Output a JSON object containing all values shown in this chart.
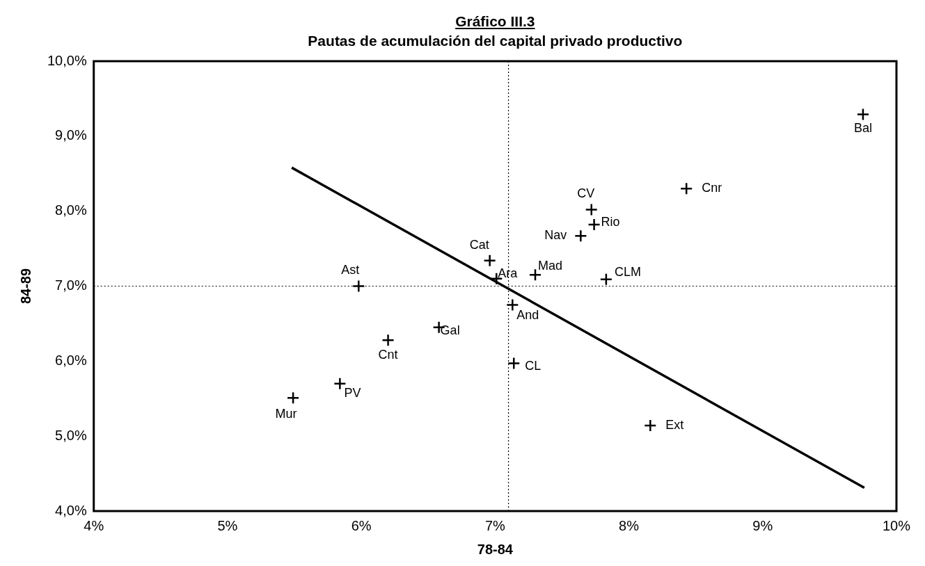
{
  "chart_data": {
    "type": "scatter",
    "title": "Gráfico III.3",
    "subtitle": "Pautas de acumulación del capital privado productivo",
    "xlabel": "78-84",
    "ylabel": "84-89",
    "xlim": [
      4,
      10
    ],
    "ylim": [
      4,
      10
    ],
    "xticks": [
      {
        "value": 4,
        "label": "4%"
      },
      {
        "value": 5,
        "label": "5%"
      },
      {
        "value": 6,
        "label": "6%"
      },
      {
        "value": 7,
        "label": "7%"
      },
      {
        "value": 8,
        "label": "8%"
      },
      {
        "value": 9,
        "label": "9%"
      },
      {
        "value": 10,
        "label": "10%"
      }
    ],
    "yticks": [
      {
        "value": 4,
        "label": "4,0%"
      },
      {
        "value": 5,
        "label": "5,0%"
      },
      {
        "value": 6,
        "label": "6,0%"
      },
      {
        "value": 7,
        "label": "7,0%"
      },
      {
        "value": 8,
        "label": "8,0%"
      },
      {
        "value": 9,
        "label": "9,0%"
      },
      {
        "value": 10,
        "label": "10,0%"
      }
    ],
    "grid": false,
    "legend": false,
    "series": [
      {
        "type": "scatter",
        "color": "#000000",
        "marker": "cross",
        "x": [
          9.75,
          8.43,
          7.72,
          7.74,
          7.64,
          6.96,
          7.01,
          7.3,
          7.83,
          7.13,
          7.14,
          8.16,
          5.98,
          6.58,
          6.2,
          5.84,
          5.49
        ],
        "values": [
          9.29,
          8.3,
          8.02,
          7.82,
          7.67,
          7.34,
          7.1,
          7.15,
          7.09,
          6.75,
          5.97,
          5.14,
          7.0,
          6.45,
          6.28,
          5.7,
          5.51
        ]
      },
      {
        "type": "line",
        "color": "#000000",
        "marker": "none",
        "line_style": "solid",
        "x": [
          5.48,
          9.76
        ],
        "values": [
          8.58,
          4.31
        ]
      }
    ],
    "ref_lines": [
      {
        "axis": "x",
        "value": 7.1,
        "color": "#000000",
        "line_style": "dotted"
      },
      {
        "axis": "y",
        "value": 7.0,
        "color": "#000000",
        "line_style": "dotted"
      }
    ],
    "annotations": [
      {
        "text": "Bal",
        "x": 9.75,
        "y": 9.29
      },
      {
        "text": "Cnr",
        "x": 8.43,
        "y": 8.3
      },
      {
        "text": "CV",
        "x": 7.72,
        "y": 8.02
      },
      {
        "text": "Rio",
        "x": 7.74,
        "y": 7.82
      },
      {
        "text": "Nav",
        "x": 7.64,
        "y": 7.67
      },
      {
        "text": "Cat",
        "x": 6.96,
        "y": 7.34
      },
      {
        "text": "Ara",
        "x": 7.01,
        "y": 7.1
      },
      {
        "text": "Mad",
        "x": 7.3,
        "y": 7.15
      },
      {
        "text": "CLM",
        "x": 7.83,
        "y": 7.09
      },
      {
        "text": "And",
        "x": 7.13,
        "y": 6.75
      },
      {
        "text": "CL",
        "x": 7.14,
        "y": 5.97
      },
      {
        "text": "Ext",
        "x": 8.16,
        "y": 5.14
      },
      {
        "text": "Ast",
        "x": 5.98,
        "y": 7.0
      },
      {
        "text": "Gal",
        "x": 6.58,
        "y": 6.45
      },
      {
        "text": "Cnt",
        "x": 6.2,
        "y": 6.28
      },
      {
        "text": "PV",
        "x": 5.84,
        "y": 5.7
      },
      {
        "text": "Mur",
        "x": 5.49,
        "y": 5.51
      }
    ]
  }
}
